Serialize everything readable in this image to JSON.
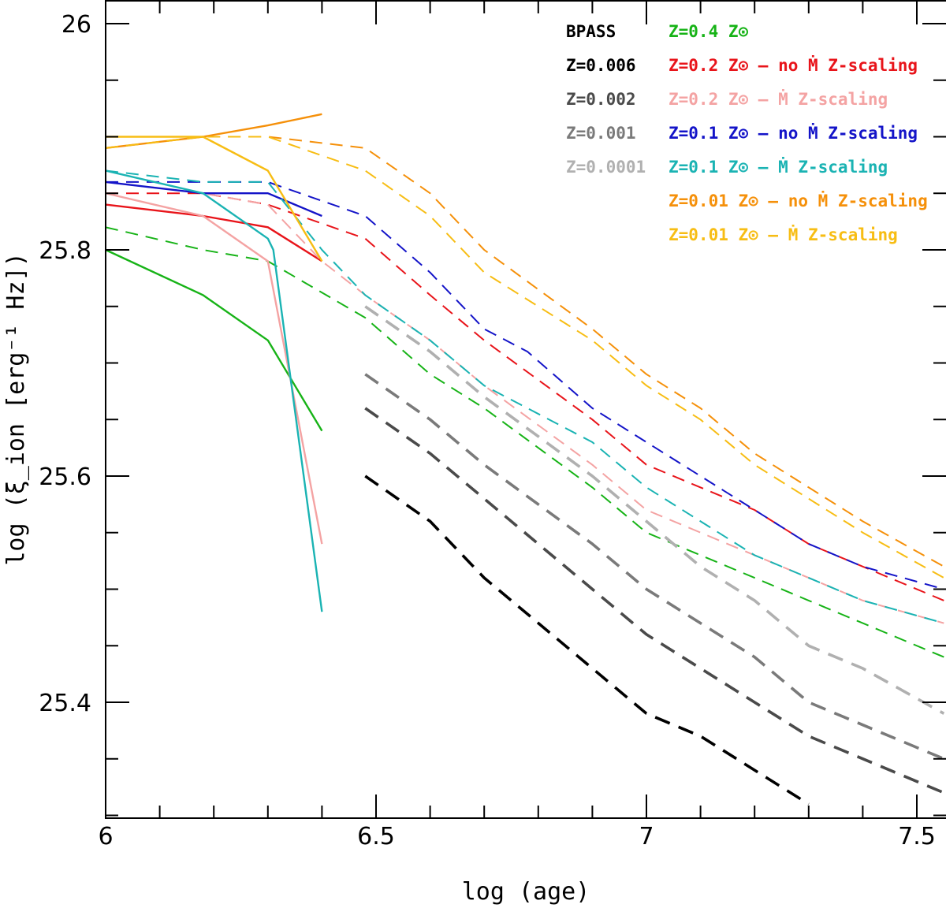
{
  "chart_data": {
    "type": "line",
    "xlabel": "log (age)",
    "ylabel": "log (ξ_ion [erg⁻¹ Hz])",
    "xlim": [
      6,
      7.55
    ],
    "ylim": [
      25.28,
      26.02
    ],
    "x_ticks": [
      "6",
      "6.5",
      "7",
      "7.5"
    ],
    "y_ticks": [
      "25.4",
      "25.6",
      "25.8",
      "26"
    ],
    "grid": false,
    "legend_placement": "top-right",
    "series": [
      {
        "name": "Z=0.4 Z⊙",
        "color": "#17b317",
        "style": "solid",
        "x": [
          6.0,
          6.18,
          6.3,
          6.4
        ],
        "y": [
          25.8,
          25.76,
          25.72,
          25.64
        ]
      },
      {
        "name": "Z=0.4 Z⊙",
        "color": "#17b317",
        "style": "dashed",
        "x": [
          6.0,
          6.18,
          6.3,
          6.48,
          6.6,
          6.7,
          6.9,
          7.0,
          7.1,
          7.2,
          7.3,
          7.4,
          7.55
        ],
        "y": [
          25.82,
          25.8,
          25.79,
          25.74,
          25.69,
          25.66,
          25.59,
          25.55,
          25.53,
          25.51,
          25.49,
          25.47,
          25.44
        ]
      },
      {
        "name": "Z=0.2 Z⊙ – no Ṁ Z-scaling",
        "color": "#e8141a",
        "style": "solid",
        "x": [
          6.0,
          6.18,
          6.3,
          6.4
        ],
        "y": [
          25.84,
          25.83,
          25.82,
          25.79
        ]
      },
      {
        "name": "Z=0.2 Z⊙ – no Ṁ Z-scaling",
        "color": "#e8141a",
        "style": "dashed",
        "x": [
          6.0,
          6.18,
          6.3,
          6.48,
          6.6,
          6.7,
          6.9,
          7.0,
          7.1,
          7.2,
          7.3,
          7.4,
          7.55
        ],
        "y": [
          25.85,
          25.85,
          25.84,
          25.81,
          25.76,
          25.72,
          25.65,
          25.61,
          25.59,
          25.57,
          25.54,
          25.52,
          25.49
        ]
      },
      {
        "name": "Z=0.2 Z⊙ – Ṁ Z-scaling",
        "color": "#f4a3a3",
        "style": "solid",
        "x": [
          6.0,
          6.18,
          6.3,
          6.4
        ],
        "y": [
          25.85,
          25.83,
          25.79,
          25.54
        ]
      },
      {
        "name": "Z=0.2 Z⊙ – Ṁ Z-scaling",
        "color": "#f4a3a3",
        "style": "dashed",
        "x": [
          6.0,
          6.18,
          6.3,
          6.4,
          6.48,
          6.6,
          6.7,
          6.9,
          7.0,
          7.1,
          7.2,
          7.3,
          7.4,
          7.55
        ],
        "y": [
          25.86,
          25.85,
          25.84,
          25.79,
          25.76,
          25.72,
          25.68,
          25.61,
          25.57,
          25.55,
          25.53,
          25.51,
          25.49,
          25.47
        ]
      },
      {
        "name": "Z=0.1 Z⊙ – no Ṁ Z-scaling",
        "color": "#1414c8",
        "style": "solid",
        "x": [
          6.0,
          6.18,
          6.3,
          6.4
        ],
        "y": [
          25.86,
          25.85,
          25.85,
          25.83
        ]
      },
      {
        "name": "Z=0.1 Z⊙ – no Ṁ Z-scaling",
        "color": "#1414c8",
        "style": "dashed",
        "x": [
          6.0,
          6.18,
          6.3,
          6.48,
          6.6,
          6.7,
          6.78,
          6.9,
          7.0,
          7.1,
          7.2,
          7.3,
          7.4,
          7.55
        ],
        "y": [
          25.86,
          25.86,
          25.86,
          25.83,
          25.78,
          25.73,
          25.71,
          25.66,
          25.63,
          25.6,
          25.57,
          25.54,
          25.52,
          25.5
        ]
      },
      {
        "name": "Z=0.1 Z⊙ – Ṁ Z-scaling",
        "color": "#1ab3b3",
        "style": "solid",
        "x": [
          6.0,
          6.18,
          6.3,
          6.31,
          6.4
        ],
        "y": [
          25.87,
          25.85,
          25.81,
          25.8,
          25.48
        ]
      },
      {
        "name": "Z=0.1 Z⊙ – Ṁ Z-scaling",
        "color": "#1ab3b3",
        "style": "dashed",
        "x": [
          6.0,
          6.18,
          6.3,
          6.4,
          6.48,
          6.6,
          6.7,
          6.9,
          7.0,
          7.1,
          7.2,
          7.3,
          7.4,
          7.55
        ],
        "y": [
          25.87,
          25.86,
          25.86,
          25.8,
          25.76,
          25.72,
          25.68,
          25.63,
          25.59,
          25.56,
          25.53,
          25.51,
          25.49,
          25.47
        ]
      },
      {
        "name": "Z=0.01 Z⊙ – no Ṁ Z-scaling",
        "color": "#f5900a",
        "style": "solid",
        "x": [
          6.0,
          6.18,
          6.3,
          6.4
        ],
        "y": [
          25.89,
          25.9,
          25.91,
          25.92
        ]
      },
      {
        "name": "Z=0.01 Z⊙ – no Ṁ Z-scaling",
        "color": "#f5900a",
        "style": "dashed",
        "x": [
          6.0,
          6.18,
          6.3,
          6.48,
          6.6,
          6.7,
          6.9,
          7.0,
          7.1,
          7.2,
          7.3,
          7.4,
          7.55
        ],
        "y": [
          25.89,
          25.9,
          25.9,
          25.89,
          25.85,
          25.8,
          25.73,
          25.69,
          25.66,
          25.62,
          25.59,
          25.56,
          25.52
        ]
      },
      {
        "name": "Z=0.01 Z⊙ – Ṁ Z-scaling",
        "color": "#f7bd14",
        "style": "solid",
        "x": [
          6.0,
          6.18,
          6.3,
          6.4
        ],
        "y": [
          25.9,
          25.9,
          25.87,
          25.79
        ]
      },
      {
        "name": "Z=0.01 Z⊙ – Ṁ Z-scaling",
        "color": "#f7bd14",
        "style": "dashed",
        "x": [
          6.0,
          6.18,
          6.3,
          6.48,
          6.6,
          6.7,
          6.9,
          7.0,
          7.1,
          7.2,
          7.3,
          7.4,
          7.55
        ],
        "y": [
          25.89,
          25.9,
          25.9,
          25.87,
          25.83,
          25.78,
          25.72,
          25.68,
          25.65,
          25.61,
          25.58,
          25.55,
          25.51
        ]
      },
      {
        "name": "Z=0.006",
        "color": "#000000",
        "style": "thick-dashed",
        "x": [
          6.48,
          6.6,
          6.7,
          6.9,
          7.0,
          7.1,
          7.2,
          7.3
        ],
        "y": [
          25.6,
          25.56,
          25.51,
          25.43,
          25.39,
          25.37,
          25.34,
          25.31
        ]
      },
      {
        "name": "Z=0.002",
        "color": "#4a4a4a",
        "style": "thick-dashed",
        "x": [
          6.48,
          6.6,
          6.7,
          6.9,
          7.0,
          7.1,
          7.2,
          7.3,
          7.4,
          7.55
        ],
        "y": [
          25.66,
          25.62,
          25.58,
          25.5,
          25.46,
          25.43,
          25.4,
          25.37,
          25.35,
          25.32
        ]
      },
      {
        "name": "Z=0.001",
        "color": "#7a7a7a",
        "style": "thick-dashed",
        "x": [
          6.48,
          6.6,
          6.7,
          6.9,
          7.0,
          7.1,
          7.2,
          7.3,
          7.4,
          7.55
        ],
        "y": [
          25.69,
          25.65,
          25.61,
          25.54,
          25.5,
          25.47,
          25.44,
          25.4,
          25.38,
          25.35
        ]
      },
      {
        "name": "Z=0.0001",
        "color": "#b0b0b0",
        "style": "thick-dashed",
        "x": [
          6.48,
          6.6,
          6.7,
          6.9,
          7.0,
          7.1,
          7.2,
          7.3,
          7.4,
          7.55
        ],
        "y": [
          25.75,
          25.71,
          25.67,
          25.6,
          25.56,
          25.52,
          25.49,
          25.45,
          25.43,
          25.39
        ]
      }
    ],
    "legend_left": [
      {
        "label": "BPASS",
        "color": "#000000"
      },
      {
        "label": "Z=0.006",
        "color": "#000000"
      },
      {
        "label": "Z=0.002",
        "color": "#4a4a4a"
      },
      {
        "label": "Z=0.001",
        "color": "#7a7a7a"
      },
      {
        "label": "Z=0.0001",
        "color": "#b0b0b0"
      }
    ],
    "legend_right": [
      {
        "label": "Z=0.4 Z⊙",
        "color": "#17b317"
      },
      {
        "label": "Z=0.2 Z⊙ – no Ṁ Z-scaling",
        "color": "#e8141a"
      },
      {
        "label": "Z=0.2 Z⊙ – Ṁ Z-scaling",
        "color": "#f4a3a3"
      },
      {
        "label": "Z=0.1 Z⊙ – no Ṁ Z-scaling",
        "color": "#1414c8"
      },
      {
        "label": "Z=0.1 Z⊙ – Ṁ Z-scaling",
        "color": "#1ab3b3"
      },
      {
        "label": "Z=0.01 Z⊙ – no Ṁ Z-scaling",
        "color": "#f5900a"
      },
      {
        "label": "Z=0.01 Z⊙ – Ṁ Z-scaling",
        "color": "#f7bd14"
      }
    ]
  }
}
